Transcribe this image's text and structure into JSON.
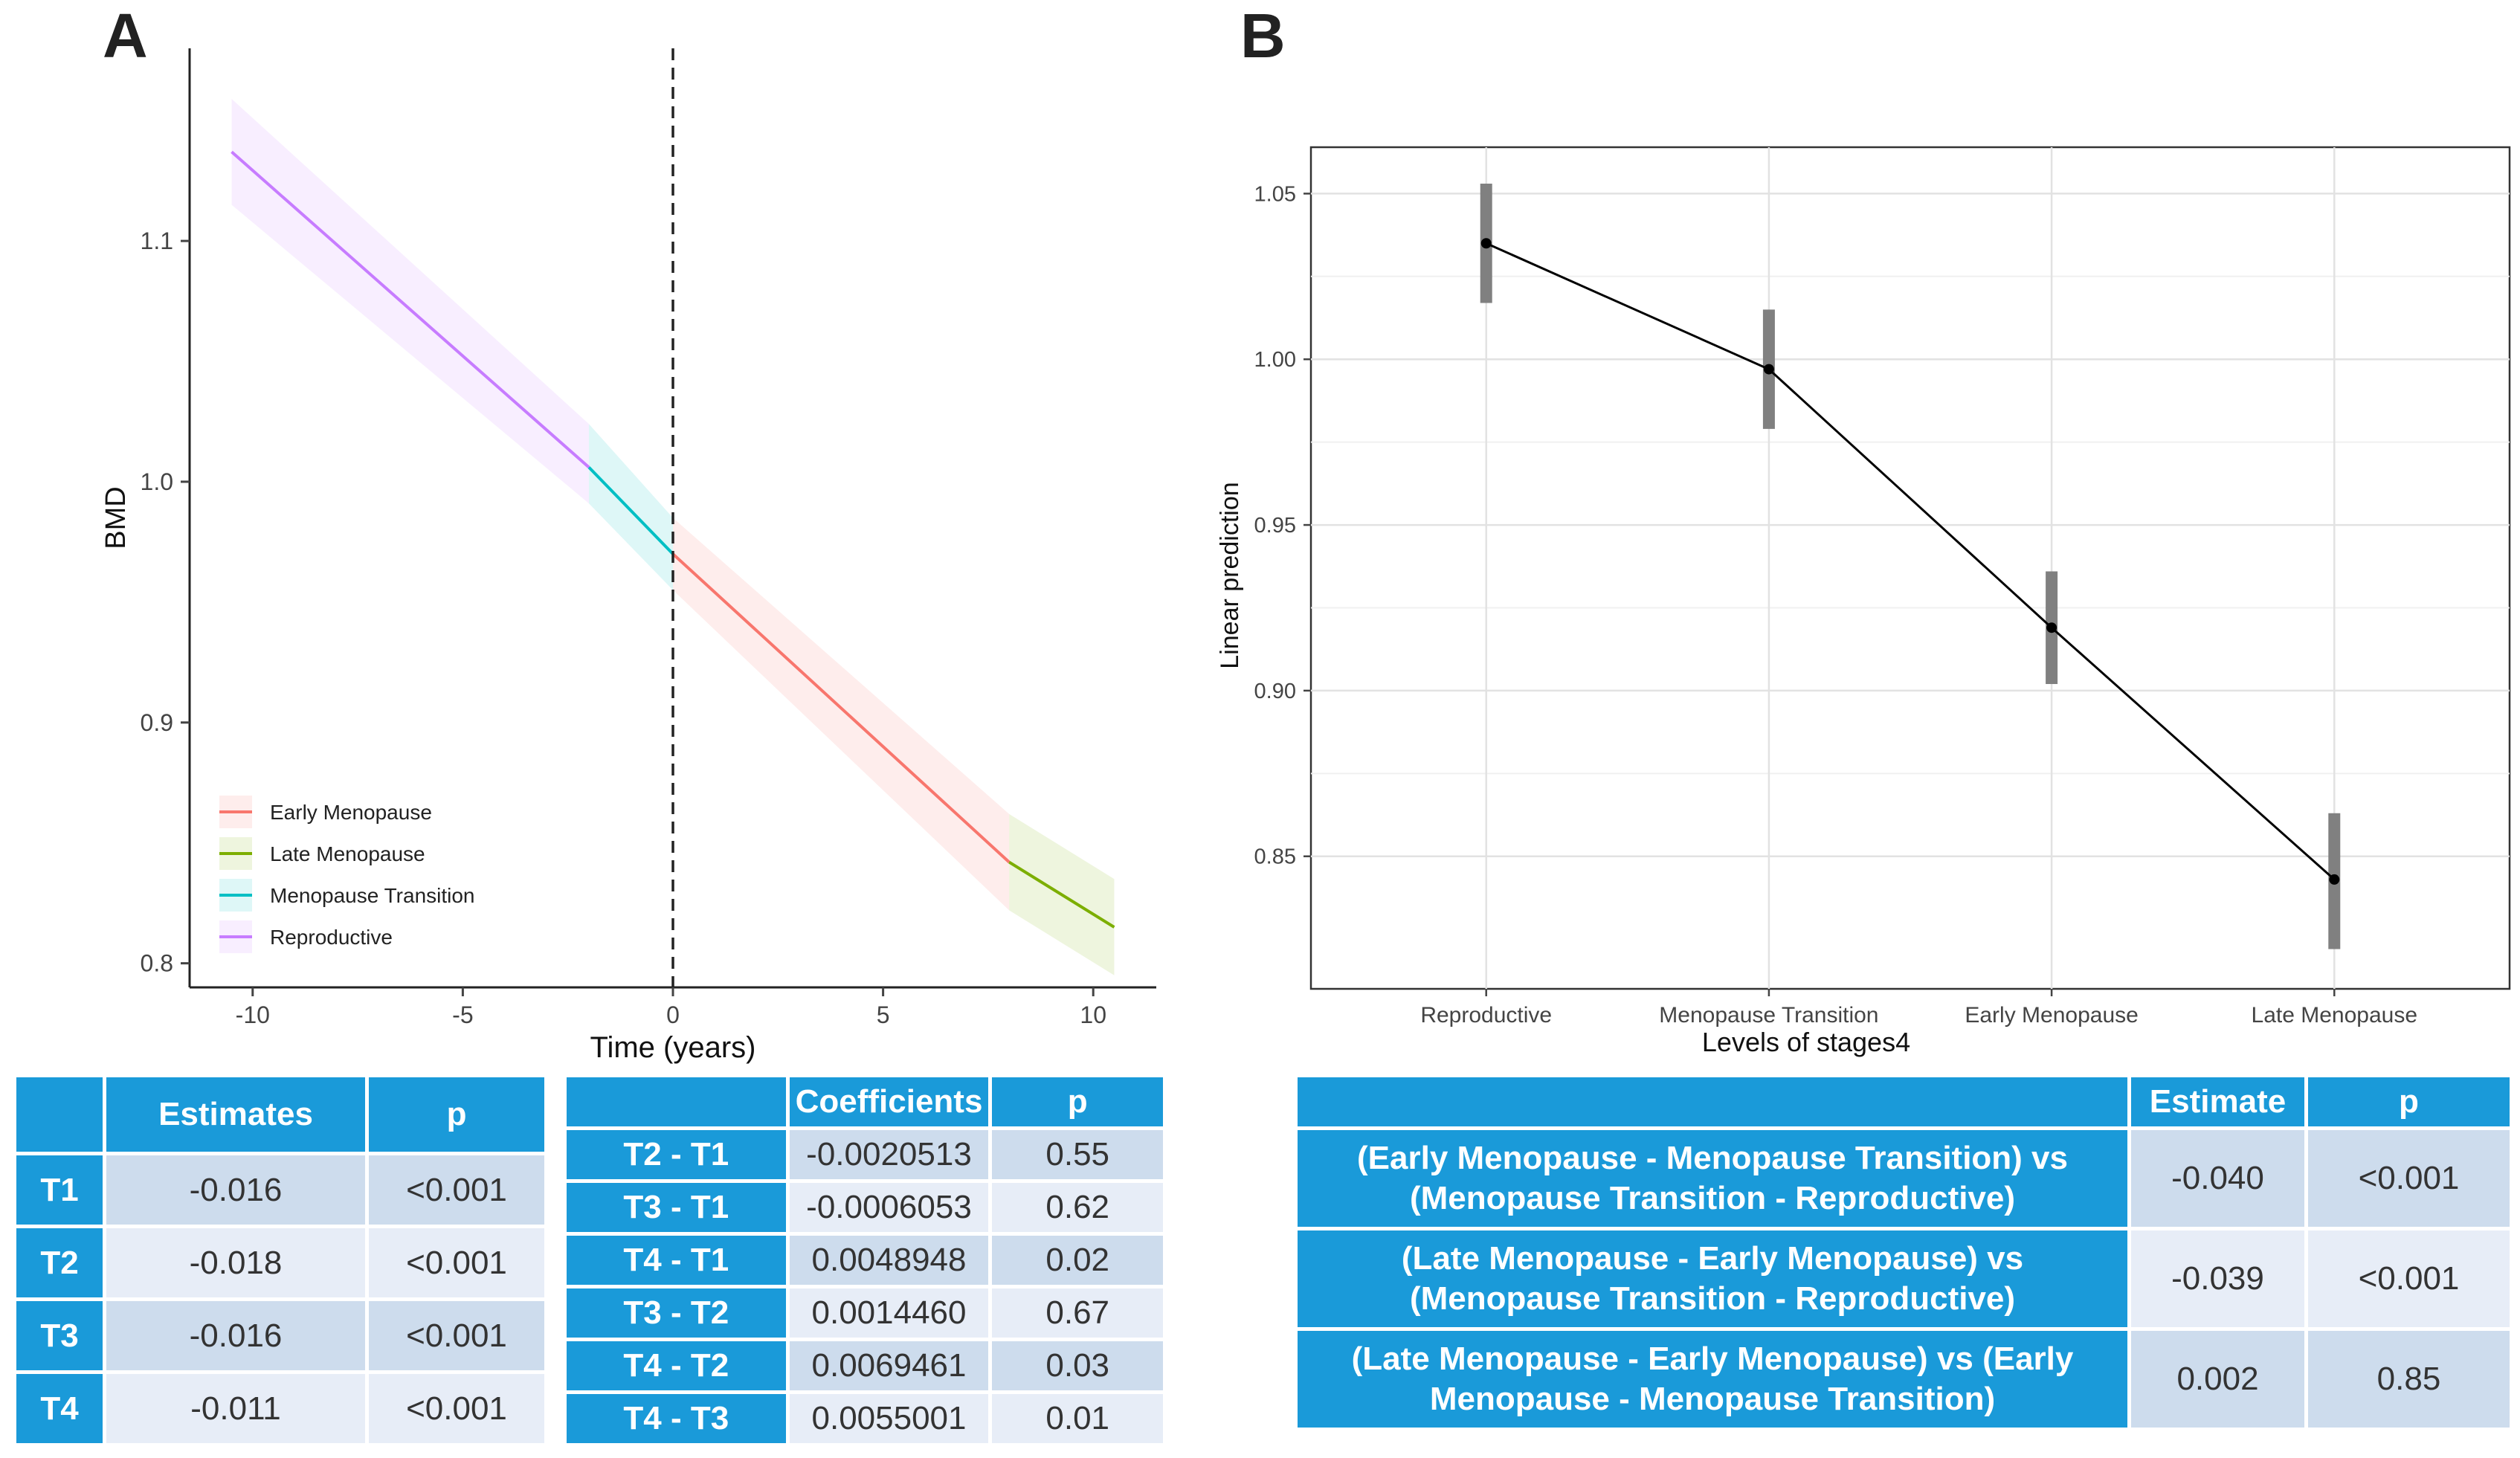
{
  "panel_a": {
    "letter": "A",
    "table_left": {
      "headers": [
        "",
        "Estimates",
        "p"
      ],
      "rows": [
        {
          "label": "T1",
          "estimate": "-0.016",
          "p": "<0.001"
        },
        {
          "label": "T2",
          "estimate": "-0.018",
          "p": "<0.001"
        },
        {
          "label": "T3",
          "estimate": "-0.016",
          "p": "<0.001"
        },
        {
          "label": "T4",
          "estimate": "-0.011",
          "p": "<0.001"
        }
      ]
    },
    "table_right": {
      "headers": [
        "",
        "Coefficients",
        "p"
      ],
      "rows": [
        {
          "label": "T2 - T1",
          "coef": "-0.0020513",
          "p": "0.55"
        },
        {
          "label": "T3 - T1",
          "coef": "-0.0006053",
          "p": "0.62"
        },
        {
          "label": "T4 - T1",
          "coef": "0.0048948",
          "p": "0.02"
        },
        {
          "label": "T3 - T2",
          "coef": "0.0014460",
          "p": "0.67"
        },
        {
          "label": "T4 - T2",
          "coef": "0.0069461",
          "p": "0.03"
        },
        {
          "label": "T4 - T3",
          "coef": "0.0055001",
          "p": "0.01"
        }
      ]
    }
  },
  "panel_b": {
    "letter": "B",
    "table": {
      "headers": [
        "",
        "Estimate",
        "p"
      ],
      "rows": [
        {
          "label": "(Early Menopause - Menopause Transition) vs (Menopause Transition - Reproductive)",
          "estimate": "-0.040",
          "p": "<0.001"
        },
        {
          "label": "(Late Menopause - Early Menopause) vs (Menopause Transition - Reproductive)",
          "estimate": "-0.039",
          "p": "<0.001"
        },
        {
          "label": "(Late Menopause - Early Menopause) vs (Early Menopause - Menopause Transition)",
          "estimate": "0.002",
          "p": "0.85"
        }
      ]
    }
  },
  "chart_data": [
    {
      "type": "line",
      "xlabel": "Time (years)",
      "ylabel": "BMD",
      "xlim": [
        -11.5,
        11.5
      ],
      "ylim": [
        0.79,
        1.18
      ],
      "xticks": [
        -10,
        -5,
        0,
        5,
        10
      ],
      "yticks": [
        0.8,
        0.9,
        1.0,
        1.1
      ],
      "grid": false,
      "vline_x": 0,
      "legend_position": "bottom-left",
      "series": [
        {
          "name": "Early Menopause",
          "color": "#F8766D",
          "x": [
            0,
            8
          ],
          "y": [
            0.97,
            0.842
          ],
          "lower": [
            0.955,
            0.822
          ],
          "upper": [
            0.985,
            0.862
          ]
        },
        {
          "name": "Late Menopause",
          "color": "#7CAE00",
          "x": [
            8,
            10.5
          ],
          "y": [
            0.842,
            0.815
          ],
          "lower": [
            0.822,
            0.795
          ],
          "upper": [
            0.862,
            0.835
          ]
        },
        {
          "name": "Menopause Transition",
          "color": "#00BFC4",
          "x": [
            -2,
            0
          ],
          "y": [
            1.006,
            0.97
          ],
          "lower": [
            0.991,
            0.955
          ],
          "upper": [
            1.024,
            0.985
          ]
        },
        {
          "name": "Reproductive",
          "color": "#C77CFF",
          "x": [
            -10.5,
            -2
          ],
          "y": [
            1.137,
            1.006
          ],
          "lower": [
            1.115,
            0.991
          ],
          "upper": [
            1.159,
            1.024
          ]
        }
      ]
    },
    {
      "type": "line",
      "xlabel": "Levels of stages4",
      "ylabel": "Linear prediction",
      "categories": [
        "Reproductive",
        "Menopause Transition",
        "Early Menopause",
        "Late Menopause"
      ],
      "ylim": [
        0.81,
        1.064
      ],
      "yticks": [
        0.85,
        0.9,
        0.95,
        1.0,
        1.05
      ],
      "grid": true,
      "series": [
        {
          "values": [
            1.035,
            0.997,
            0.919,
            0.843
          ],
          "lower": [
            1.017,
            0.979,
            0.902,
            0.822
          ],
          "upper": [
            1.053,
            1.015,
            0.936,
            0.863
          ],
          "color": "#000000",
          "ci_color": "#808080"
        }
      ]
    }
  ]
}
